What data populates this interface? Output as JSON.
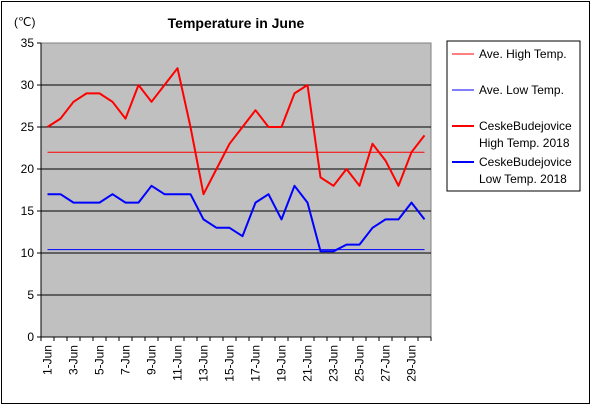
{
  "chart_data": {
    "type": "line",
    "title": "Temperature in June",
    "ylabel": "(℃)",
    "xlabel": "",
    "ylim": [
      0,
      35
    ],
    "yticks": [
      0,
      5,
      10,
      15,
      20,
      25,
      30,
      35
    ],
    "grid": true,
    "legend_position": "right",
    "categories": [
      "1-Jun",
      "2-Jun",
      "3-Jun",
      "4-Jun",
      "5-Jun",
      "6-Jun",
      "7-Jun",
      "8-Jun",
      "9-Jun",
      "10-Jun",
      "11-Jun",
      "12-Jun",
      "13-Jun",
      "14-Jun",
      "15-Jun",
      "16-Jun",
      "17-Jun",
      "18-Jun",
      "19-Jun",
      "20-Jun",
      "21-Jun",
      "22-Jun",
      "23-Jun",
      "24-Jun",
      "25-Jun",
      "26-Jun",
      "27-Jun",
      "28-Jun",
      "29-Jun",
      "30-Jun"
    ],
    "tick_labels": [
      "1-Jun",
      "3-Jun",
      "5-Jun",
      "7-Jun",
      "9-Jun",
      "11-Jun",
      "13-Jun",
      "15-Jun",
      "17-Jun",
      "19-Jun",
      "21-Jun",
      "23-Jun",
      "25-Jun",
      "27-Jun",
      "29-Jun"
    ],
    "series": [
      {
        "name": "Ave. High Temp.",
        "color": "#ff0000",
        "width": 1,
        "values": [
          22,
          22,
          22,
          22,
          22,
          22,
          22,
          22,
          22,
          22,
          22,
          22,
          22,
          22,
          22,
          22,
          22,
          22,
          22,
          22,
          22,
          22,
          22,
          22,
          22,
          22,
          22,
          22,
          22,
          22
        ]
      },
      {
        "name": "Ave. Low Temp.",
        "color": "#0000ff",
        "width": 1,
        "values": [
          10.4,
          10.4,
          10.4,
          10.4,
          10.4,
          10.4,
          10.4,
          10.4,
          10.4,
          10.4,
          10.4,
          10.4,
          10.4,
          10.4,
          10.4,
          10.4,
          10.4,
          10.4,
          10.4,
          10.4,
          10.4,
          10.4,
          10.4,
          10.4,
          10.4,
          10.4,
          10.4,
          10.4,
          10.4,
          10.4
        ]
      },
      {
        "name": "CeskeBudejovice High Temp. 2018",
        "legend_lines": [
          "CeskeBudejovice",
          "High Temp. 2018"
        ],
        "color": "#ff0000",
        "width": 2,
        "values": [
          25,
          26,
          28,
          29,
          29,
          28,
          26,
          30,
          28,
          30,
          32,
          25,
          17,
          20,
          23,
          25,
          27,
          25,
          25,
          29,
          30,
          19,
          18,
          20,
          18,
          23,
          21,
          18,
          22,
          24
        ]
      },
      {
        "name": "CeskeBudejovice Low Temp. 2018",
        "legend_lines": [
          "CeskeBudejovice",
          "Low Temp. 2018"
        ],
        "color": "#0000ff",
        "width": 2,
        "values": [
          17,
          17,
          16,
          16,
          16,
          17,
          16,
          16,
          18,
          17,
          17,
          17,
          14,
          13,
          13,
          12,
          16,
          17,
          14,
          18,
          16,
          10.2,
          10.2,
          11,
          11,
          13,
          14,
          14,
          16,
          14
        ]
      }
    ],
    "colors": {
      "plot_bg": "#c0c0c0",
      "grid": "#000000"
    }
  }
}
